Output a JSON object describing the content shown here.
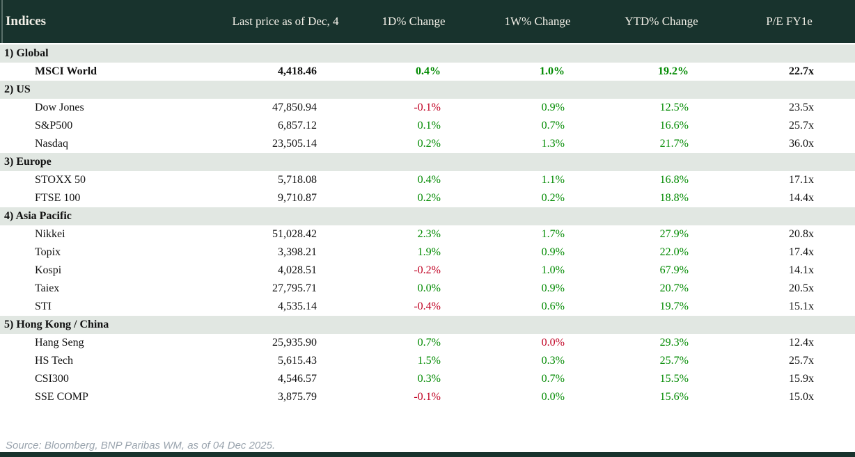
{
  "table": {
    "columns": [
      "Indices",
      "Last price as of Dec, 4",
      "1D% Change",
      "1W% Change",
      "YTD% Change",
      "P/E FY1e"
    ],
    "sections": [
      {
        "label": "1) Global",
        "rows": [
          {
            "name": "MSCI World",
            "last_price": "4,418.46",
            "d1": "0.4%",
            "d1_dir": "up",
            "w1": "1.0%",
            "w1_dir": "up",
            "ytd": "19.2%",
            "ytd_dir": "up",
            "pe": "22.7x",
            "emphasis": true
          }
        ]
      },
      {
        "label": "2) US",
        "rows": [
          {
            "name": "Dow Jones",
            "last_price": "47,850.94",
            "d1": "-0.1%",
            "d1_dir": "down",
            "w1": "0.9%",
            "w1_dir": "up",
            "ytd": "12.5%",
            "ytd_dir": "up",
            "pe": "23.5x",
            "emphasis": false
          },
          {
            "name": "S&P500",
            "last_price": "6,857.12",
            "d1": "0.1%",
            "d1_dir": "up",
            "w1": "0.7%",
            "w1_dir": "up",
            "ytd": "16.6%",
            "ytd_dir": "up",
            "pe": "25.7x",
            "emphasis": false
          },
          {
            "name": "Nasdaq",
            "last_price": "23,505.14",
            "d1": "0.2%",
            "d1_dir": "up",
            "w1": "1.3%",
            "w1_dir": "up",
            "ytd": "21.7%",
            "ytd_dir": "up",
            "pe": "36.0x",
            "emphasis": false
          }
        ]
      },
      {
        "label": "3) Europe",
        "rows": [
          {
            "name": "STOXX 50",
            "last_price": "5,718.08",
            "d1": "0.4%",
            "d1_dir": "up",
            "w1": "1.1%",
            "w1_dir": "up",
            "ytd": "16.8%",
            "ytd_dir": "up",
            "pe": "17.1x",
            "emphasis": false
          },
          {
            "name": "FTSE 100",
            "last_price": "9,710.87",
            "d1": "0.2%",
            "d1_dir": "up",
            "w1": "0.2%",
            "w1_dir": "up",
            "ytd": "18.8%",
            "ytd_dir": "up",
            "pe": "14.4x",
            "emphasis": false
          }
        ]
      },
      {
        "label": "4) Asia Pacific",
        "rows": [
          {
            "name": "Nikkei",
            "last_price": "51,028.42",
            "d1": "2.3%",
            "d1_dir": "up",
            "w1": "1.7%",
            "w1_dir": "up",
            "ytd": "27.9%",
            "ytd_dir": "up",
            "pe": "20.8x",
            "emphasis": false
          },
          {
            "name": "Topix",
            "last_price": "3,398.21",
            "d1": "1.9%",
            "d1_dir": "up",
            "w1": "0.9%",
            "w1_dir": "up",
            "ytd": "22.0%",
            "ytd_dir": "up",
            "pe": "17.4x",
            "emphasis": false
          },
          {
            "name": "Kospi",
            "last_price": "4,028.51",
            "d1": "-0.2%",
            "d1_dir": "down",
            "w1": "1.0%",
            "w1_dir": "up",
            "ytd": "67.9%",
            "ytd_dir": "up",
            "pe": "14.1x",
            "emphasis": false
          },
          {
            "name": "Taiex",
            "last_price": "27,795.71",
            "d1": "0.0%",
            "d1_dir": "up",
            "w1": "0.9%",
            "w1_dir": "up",
            "ytd": "20.7%",
            "ytd_dir": "up",
            "pe": "20.5x",
            "emphasis": false
          },
          {
            "name": "STI",
            "last_price": "4,535.14",
            "d1": "-0.4%",
            "d1_dir": "down",
            "w1": "0.6%",
            "w1_dir": "up",
            "ytd": "19.7%",
            "ytd_dir": "up",
            "pe": "15.1x",
            "emphasis": false
          }
        ]
      },
      {
        "label": "5) Hong Kong / China",
        "rows": [
          {
            "name": "Hang Seng",
            "last_price": "25,935.90",
            "d1": "0.7%",
            "d1_dir": "up",
            "w1": "0.0%",
            "w1_dir": "down",
            "ytd": "29.3%",
            "ytd_dir": "up",
            "pe": "12.4x",
            "emphasis": false
          },
          {
            "name": "HS Tech",
            "last_price": "5,615.43",
            "d1": "1.5%",
            "d1_dir": "up",
            "w1": "0.3%",
            "w1_dir": "up",
            "ytd": "25.7%",
            "ytd_dir": "up",
            "pe": "25.7x",
            "emphasis": false
          },
          {
            "name": "CSI300",
            "last_price": "4,546.57",
            "d1": "0.3%",
            "d1_dir": "up",
            "w1": "0.7%",
            "w1_dir": "up",
            "ytd": "15.5%",
            "ytd_dir": "up",
            "pe": "15.9x",
            "emphasis": false
          },
          {
            "name": "SSE COMP",
            "last_price": "3,875.79",
            "d1": "-0.1%",
            "d1_dir": "down",
            "w1": "0.0%",
            "w1_dir": "up",
            "ytd": "15.6%",
            "ytd_dir": "up",
            "pe": "15.0x",
            "emphasis": false
          }
        ]
      }
    ]
  },
  "footer": {
    "source": "Source: Bloomberg, BNP Paribas WM, as of 04 Dec 2025."
  },
  "colors": {
    "header_bg": "#18332d",
    "header_text": "#f2efe7",
    "section_row_bg": "#e1e7e2",
    "positive": "#008a00",
    "negative": "#c00022",
    "footer_text": "#9aa4ae",
    "bottom_bar": "#18332d"
  }
}
